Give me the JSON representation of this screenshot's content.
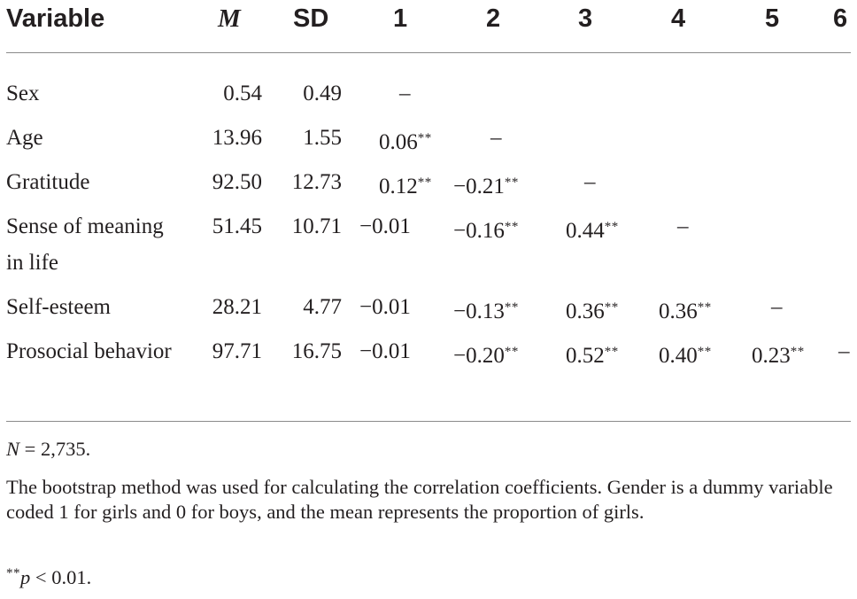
{
  "table": {
    "headers": [
      "Variable",
      "M",
      "SD",
      "1",
      "2",
      "3",
      "4",
      "5",
      "6"
    ],
    "rows": [
      {
        "variable": "Sex",
        "m": "0.54",
        "sd": "0.49",
        "c1": "–",
        "c2": "",
        "c3": "",
        "c4": "",
        "c5": "",
        "c6": ""
      },
      {
        "variable": "Age",
        "m": "13.96",
        "sd": "1.55",
        "c1": "0.06**",
        "c2": "–",
        "c3": "",
        "c4": "",
        "c5": "",
        "c6": ""
      },
      {
        "variable": "Gratitude",
        "m": "92.50",
        "sd": "12.73",
        "c1": "0.12**",
        "c2": "−0.21**",
        "c3": "–",
        "c4": "",
        "c5": "",
        "c6": ""
      },
      {
        "variable": "Sense of meaning in life",
        "m": "51.45",
        "sd": "10.71",
        "c1": "−0.01",
        "c2": "−0.16**",
        "c3": "0.44**",
        "c4": "–",
        "c5": "",
        "c6": ""
      },
      {
        "variable": "Self-esteem",
        "m": "28.21",
        "sd": "4.77",
        "c1": "−0.01",
        "c2": "−0.13**",
        "c3": "0.36**",
        "c4": "0.36**",
        "c5": "–",
        "c6": ""
      },
      {
        "variable": "Prosocial behavior",
        "m": "97.71",
        "sd": "16.75",
        "c1": "−0.01",
        "c2": "−0.20**",
        "c3": "0.52**",
        "c4": "0.40**",
        "c5": "0.23**",
        "c6": "–"
      }
    ]
  },
  "notes": {
    "n_italic": "N",
    "n_rest": " = 2,735.",
    "bootstrap": "The bootstrap method was used for calculating the correlation coefficients. Gender is a dummy variable coded 1 for girls and 0 for boys, and the mean represents the proportion of girls.",
    "p_stars": "**",
    "p_italic": "p",
    "p_rest": " < 0.01."
  }
}
